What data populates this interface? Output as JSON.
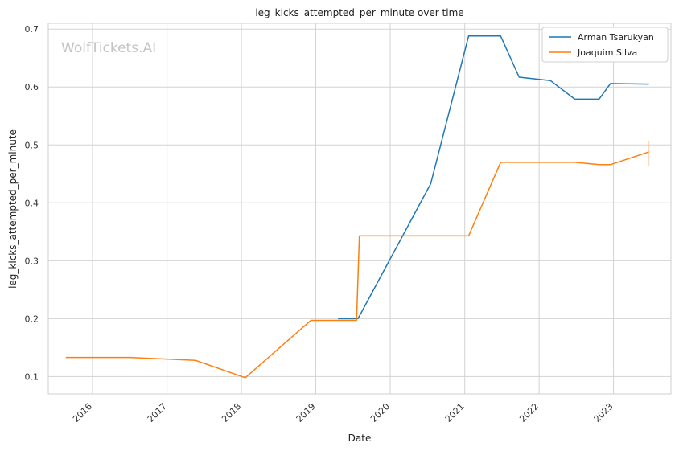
{
  "chart_data": {
    "type": "line",
    "title": "leg_kicks_attempted_per_minute over time",
    "xlabel": "Date",
    "ylabel": "leg_kicks_attempted_per_minute",
    "watermark": "WolfTickets.AI",
    "x_ticks": [
      "2016",
      "2017",
      "2018",
      "2019",
      "2020",
      "2021",
      "2022",
      "2023"
    ],
    "y_ticks": [
      "0.1",
      "0.2",
      "0.3",
      "0.4",
      "0.5",
      "0.6",
      "0.7"
    ],
    "xlim": [
      "2015-05-29",
      "2023-10-10"
    ],
    "ylim": [
      0.07,
      0.71
    ],
    "grid": true,
    "legend_position": "top-right",
    "series": [
      {
        "name": "Arman Tsarukyan",
        "color": "#1f77b4",
        "points": [
          {
            "x": "2019-04-20",
            "y": 0.2
          },
          {
            "x": "2019-07-27",
            "y": 0.2
          },
          {
            "x": "2020-07-18",
            "y": 0.433
          },
          {
            "x": "2021-01-20",
            "y": 0.688
          },
          {
            "x": "2021-06-26",
            "y": 0.688
          },
          {
            "x": "2021-09-25",
            "y": 0.617
          },
          {
            "x": "2022-02-26",
            "y": 0.611
          },
          {
            "x": "2022-06-25",
            "y": 0.579
          },
          {
            "x": "2022-10-22",
            "y": 0.579
          },
          {
            "x": "2022-12-17",
            "y": 0.606
          },
          {
            "x": "2023-06-24",
            "y": 0.605
          }
        ]
      },
      {
        "name": "Joaquim Silva",
        "color": "#ff7f0e",
        "points": [
          {
            "x": "2015-08-23",
            "y": 0.133
          },
          {
            "x": "2016-07-02",
            "y": 0.133
          },
          {
            "x": "2017-05-20",
            "y": 0.128
          },
          {
            "x": "2018-01-20",
            "y": 0.098
          },
          {
            "x": "2018-12-08",
            "y": 0.197
          },
          {
            "x": "2019-07-20",
            "y": 0.197
          },
          {
            "x": "2019-08-03",
            "y": 0.343
          },
          {
            "x": "2021-01-20",
            "y": 0.343
          },
          {
            "x": "2021-06-26",
            "y": 0.47
          },
          {
            "x": "2022-06-25",
            "y": 0.47
          },
          {
            "x": "2022-10-22",
            "y": 0.466
          },
          {
            "x": "2022-12-17",
            "y": 0.466
          },
          {
            "x": "2023-06-24",
            "y": 0.488
          }
        ]
      }
    ]
  }
}
